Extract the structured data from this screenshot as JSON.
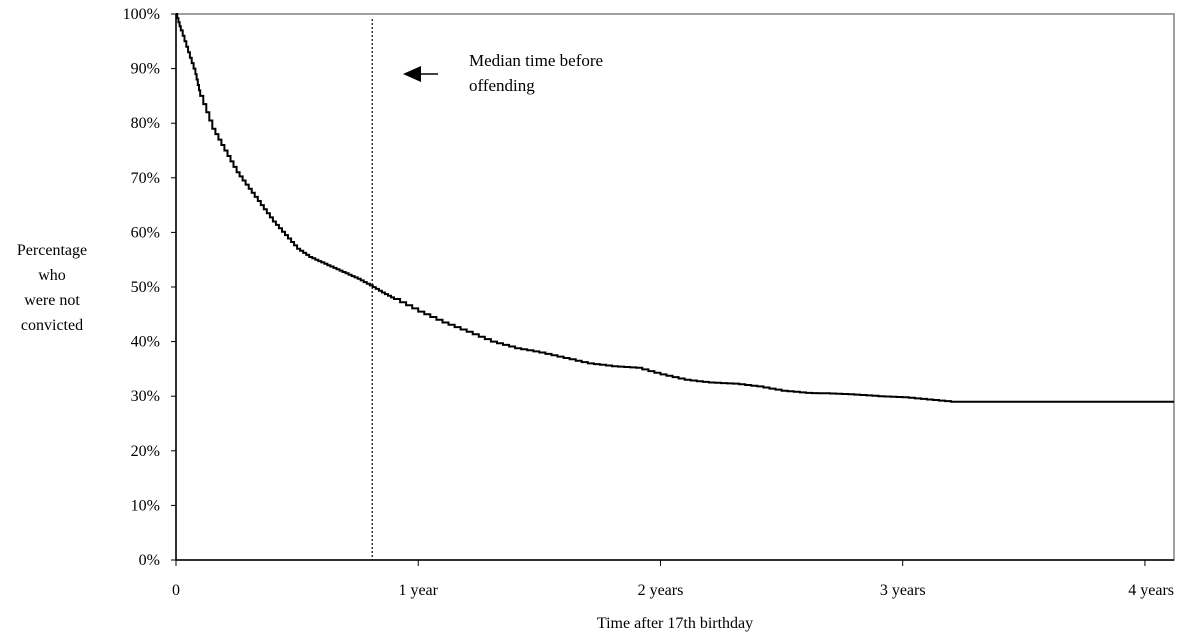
{
  "chart_data": {
    "type": "line",
    "title": "",
    "xlabel": "Time after 17th birthday",
    "ylabel_lines": [
      "Percentage",
      "who",
      "were not",
      "convicted"
    ],
    "xlim": [
      0,
      4.12
    ],
    "ylim": [
      0,
      100
    ],
    "x_ticks": [
      {
        "value": 0,
        "label": "0"
      },
      {
        "value": 1,
        "label": "1 year"
      },
      {
        "value": 2,
        "label": "2 years"
      },
      {
        "value": 3,
        "label": "3 years"
      },
      {
        "value": 4,
        "label": "4 years"
      }
    ],
    "y_ticks": [
      {
        "value": 0,
        "label": "0%"
      },
      {
        "value": 10,
        "label": "10%"
      },
      {
        "value": 20,
        "label": "20%"
      },
      {
        "value": 30,
        "label": "30%"
      },
      {
        "value": 40,
        "label": "40%"
      },
      {
        "value": 50,
        "label": "50%"
      },
      {
        "value": 60,
        "label": "60%"
      },
      {
        "value": 70,
        "label": "70%"
      },
      {
        "value": 80,
        "label": "80%"
      },
      {
        "value": 90,
        "label": "90%"
      },
      {
        "value": 100,
        "label": "100%"
      }
    ],
    "grid": false,
    "series": [
      {
        "x": [
          0,
          0.02,
          0.05,
          0.08,
          0.1,
          0.15,
          0.2,
          0.25,
          0.3,
          0.35,
          0.4,
          0.45,
          0.5,
          0.55,
          0.6,
          0.65,
          0.7,
          0.75,
          0.8,
          0.85,
          0.9,
          1.0,
          1.1,
          1.2,
          1.3,
          1.4,
          1.5,
          1.6,
          1.7,
          1.8,
          1.9,
          2.0,
          2.1,
          2.2,
          2.3,
          2.4,
          2.5,
          2.6,
          2.7,
          2.8,
          2.9,
          3.0,
          3.1,
          3.2,
          3.5,
          3.8,
          4.12
        ],
        "y": [
          100,
          97,
          93,
          89,
          85,
          79,
          75,
          71,
          68,
          65,
          62,
          59.5,
          57,
          55.5,
          54.5,
          53.5,
          52.5,
          51.5,
          50.3,
          49,
          47.8,
          45.5,
          43.5,
          41.8,
          40,
          38.8,
          38,
          37,
          36,
          35.5,
          35.2,
          34,
          33,
          32.5,
          32.3,
          31.8,
          31,
          30.6,
          30.5,
          30.3,
          30,
          29.8,
          29.4,
          29,
          29,
          29,
          29
        ]
      }
    ],
    "median_line_x": 0.81,
    "annotation": {
      "lines": [
        "Median time before",
        "offending"
      ]
    }
  }
}
